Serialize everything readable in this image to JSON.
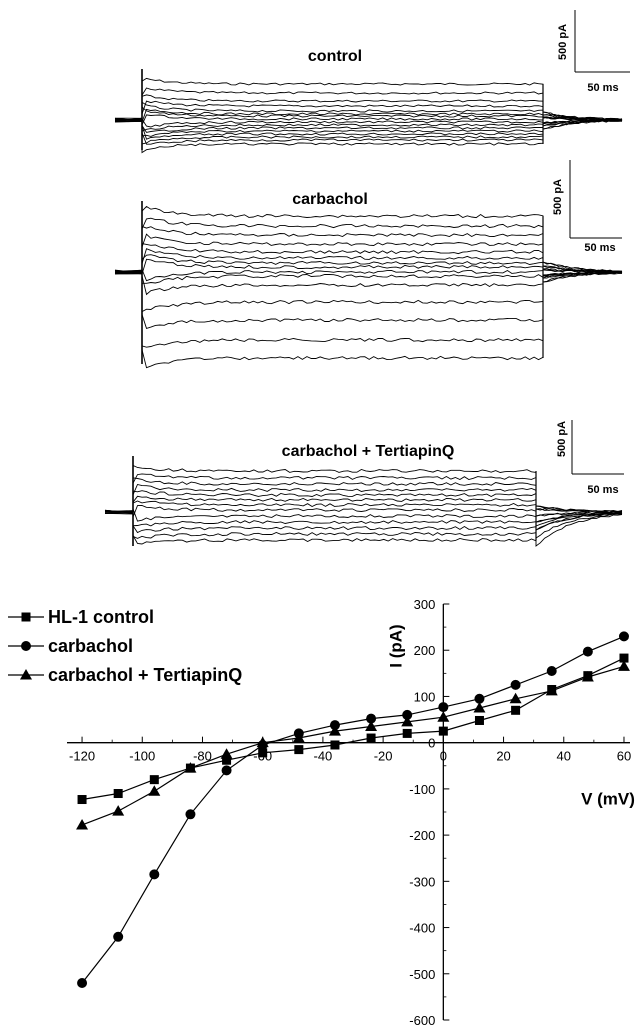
{
  "panels": [
    {
      "title": "control",
      "scale_y": "500 pA",
      "scale_x": "50 ms"
    },
    {
      "title": "carbachol",
      "scale_y": "500 pA",
      "scale_x": "50 ms"
    },
    {
      "title": "carbachol + TertiapinQ",
      "scale_y": "500 pA",
      "scale_x": "50 ms"
    }
  ],
  "chart_data": {
    "type": "line",
    "title": "",
    "xlabel": "V (mV)",
    "ylabel": "I (pA)",
    "xlim": [
      -125,
      62
    ],
    "ylim": [
      -600,
      300
    ],
    "xticks": [
      -120,
      -100,
      -80,
      -60,
      -40,
      -20,
      0,
      20,
      40,
      60
    ],
    "yticks": [
      -600,
      -500,
      -400,
      -300,
      -200,
      -100,
      0,
      100,
      200,
      300
    ],
    "legend_position": "top-left",
    "x": [
      -120,
      -108,
      -96,
      -84,
      -72,
      -60,
      -48,
      -36,
      -24,
      -12,
      0,
      12,
      24,
      36,
      48,
      60
    ],
    "series": [
      {
        "name": "HL-1 control",
        "marker": "square",
        "values": [
          -123,
          -110,
          -80,
          -55,
          -38,
          -22,
          -15,
          -5,
          10,
          20,
          25,
          48,
          70,
          115,
          145,
          183
        ]
      },
      {
        "name": "carbachol",
        "marker": "circle",
        "values": [
          -520,
          -420,
          -285,
          -155,
          -60,
          -5,
          20,
          38,
          52,
          60,
          77,
          95,
          125,
          155,
          197,
          230
        ]
      },
      {
        "name": " carbachol + TertiapinQ",
        "marker": "triangle",
        "values": [
          -178,
          -148,
          -105,
          -55,
          -25,
          0,
          10,
          25,
          35,
          45,
          55,
          75,
          95,
          112,
          142,
          165
        ]
      }
    ]
  }
}
